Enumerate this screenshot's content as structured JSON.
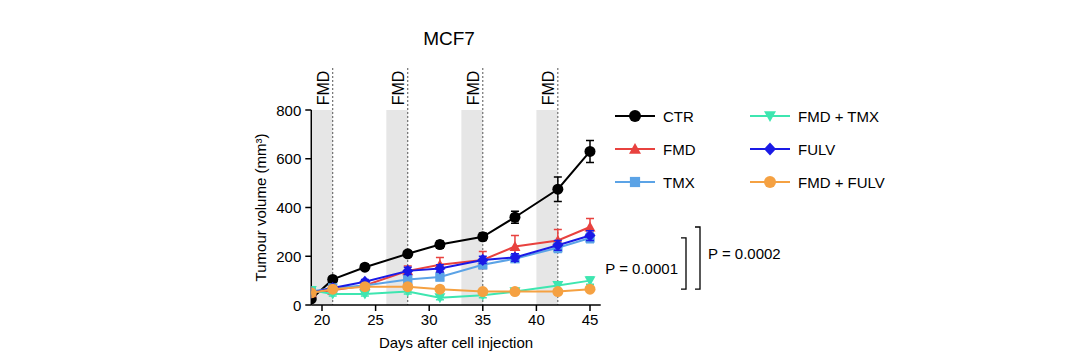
{
  "chart_data": {
    "type": "line",
    "title": "MCF7",
    "x_label": "Days after cell injection",
    "y_label": "Tumour volume (mm³)",
    "x": [
      19,
      21,
      24,
      28,
      31,
      35,
      38,
      42,
      45
    ],
    "xlim": [
      19,
      46
    ],
    "xticks": [
      20,
      25,
      30,
      35,
      40,
      45
    ],
    "ylim": [
      0,
      800
    ],
    "yticks": [
      0,
      200,
      400,
      600,
      800
    ],
    "grid": false,
    "legend": "right",
    "series": [
      {
        "name": "CTR",
        "color": "#000000",
        "marker": "circle",
        "values": [
          25,
          105,
          155,
          210,
          248,
          280,
          360,
          475,
          630
        ],
        "errors": [
          5,
          10,
          12,
          12,
          15,
          15,
          25,
          50,
          45
        ]
      },
      {
        "name": "FMD",
        "color": "#e8423f",
        "marker": "triangle",
        "values": [
          50,
          60,
          80,
          140,
          165,
          185,
          240,
          265,
          320
        ],
        "errors": [
          5,
          8,
          10,
          20,
          30,
          35,
          45,
          45,
          35
        ]
      },
      {
        "name": "TMX",
        "color": "#5ba3e6",
        "marker": "square",
        "values": [
          55,
          70,
          80,
          105,
          115,
          165,
          190,
          235,
          275
        ],
        "errors": [
          5,
          8,
          10,
          12,
          15,
          15,
          15,
          20,
          20
        ]
      },
      {
        "name": "FMD + TMX",
        "color": "#3ee6b0",
        "marker": "triangle-down",
        "values": [
          60,
          45,
          45,
          55,
          30,
          40,
          55,
          80,
          100
        ],
        "errors": [
          5,
          8,
          8,
          10,
          8,
          10,
          10,
          15,
          15
        ]
      },
      {
        "name": "FULV",
        "color": "#1a1ae6",
        "marker": "diamond",
        "values": [
          50,
          70,
          95,
          140,
          150,
          185,
          195,
          245,
          285
        ],
        "errors": [
          5,
          8,
          10,
          15,
          15,
          15,
          15,
          20,
          20
        ]
      },
      {
        "name": "FMD + FULV",
        "color": "#f5a142",
        "marker": "circle",
        "values": [
          50,
          65,
          75,
          75,
          65,
          55,
          55,
          55,
          65
        ],
        "errors": [
          5,
          8,
          10,
          10,
          10,
          8,
          8,
          8,
          10
        ]
      }
    ],
    "shaded_regions": [
      {
        "start": 19,
        "end": 21,
        "label": "FMD"
      },
      {
        "start": 26,
        "end": 28,
        "label": "FMD"
      },
      {
        "start": 33,
        "end": 35,
        "label": "FMD"
      },
      {
        "start": 40,
        "end": 42,
        "label": "FMD"
      }
    ],
    "annotations": [
      {
        "text": "P = 0.0001",
        "y_range": [
          65,
          275
        ]
      },
      {
        "text": "P = 0.0002",
        "y_range": [
          65,
          320
        ]
      }
    ]
  }
}
